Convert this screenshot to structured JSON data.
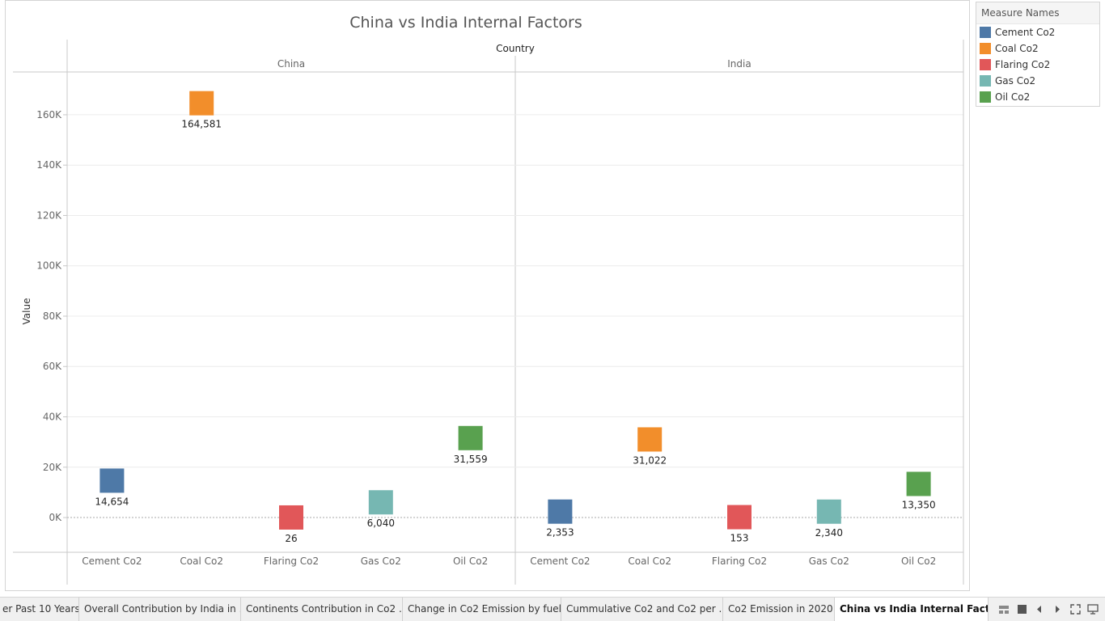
{
  "chart_data": {
    "type": "scatter",
    "mark_shape": "square",
    "title": "China vs India Internal Factors",
    "column_header": "Country",
    "panes": [
      "China",
      "India"
    ],
    "ylabel": "Value",
    "ylim": [
      -13800,
      177000
    ],
    "yticks": [
      0,
      20000,
      40000,
      60000,
      80000,
      100000,
      120000,
      140000,
      160000
    ],
    "ytick_labels": [
      "0K",
      "20K",
      "40K",
      "60K",
      "80K",
      "100K",
      "120K",
      "140K",
      "160K"
    ],
    "categories": [
      "Cement Co2",
      "Coal Co2",
      "Flaring Co2",
      "Gas Co2",
      "Oil Co2"
    ],
    "series": [
      {
        "name": "China",
        "values": [
          14654,
          164581,
          26,
          6040,
          31559
        ],
        "labels": [
          "14,654",
          "164,581",
          "26",
          "6,040",
          "31,559"
        ]
      },
      {
        "name": "India",
        "values": [
          2353,
          31022,
          153,
          2340,
          13350
        ],
        "labels": [
          "2,353",
          "31,022",
          "153",
          "2,340",
          "13,350"
        ]
      }
    ],
    "colors": [
      "#4e79a7",
      "#f28e2b",
      "#e15759",
      "#76b7b2",
      "#59a14f"
    ],
    "grid": true,
    "legend_position": "right"
  },
  "legend": {
    "title": "Measure Names",
    "items": [
      {
        "label": "Cement Co2",
        "color": "#4e79a7"
      },
      {
        "label": "Coal Co2",
        "color": "#f28e2b"
      },
      {
        "label": "Flaring Co2",
        "color": "#e15759"
      },
      {
        "label": "Gas Co2",
        "color": "#76b7b2"
      },
      {
        "label": "Oil Co2",
        "color": "#59a14f"
      }
    ]
  },
  "tabs": [
    {
      "label": "er Past 10 Years",
      "active": false
    },
    {
      "label": "Overall Contribution by India in ...",
      "active": false
    },
    {
      "label": "Continents Contribution in Co2 ...",
      "active": false
    },
    {
      "label": "Change in Co2 Emission by fuel",
      "active": false
    },
    {
      "label": "Cummulative Co2 and Co2 per ...",
      "active": false
    },
    {
      "label": "Co2 Emission in 2020",
      "active": false
    },
    {
      "label": "China vs India Internal Factors",
      "active": true
    }
  ],
  "tab_controls": [
    "grid-view-icon",
    "single-view-icon",
    "prev-sheet-icon",
    "next-sheet-icon",
    "fullscreen-icon",
    "presentation-icon"
  ]
}
